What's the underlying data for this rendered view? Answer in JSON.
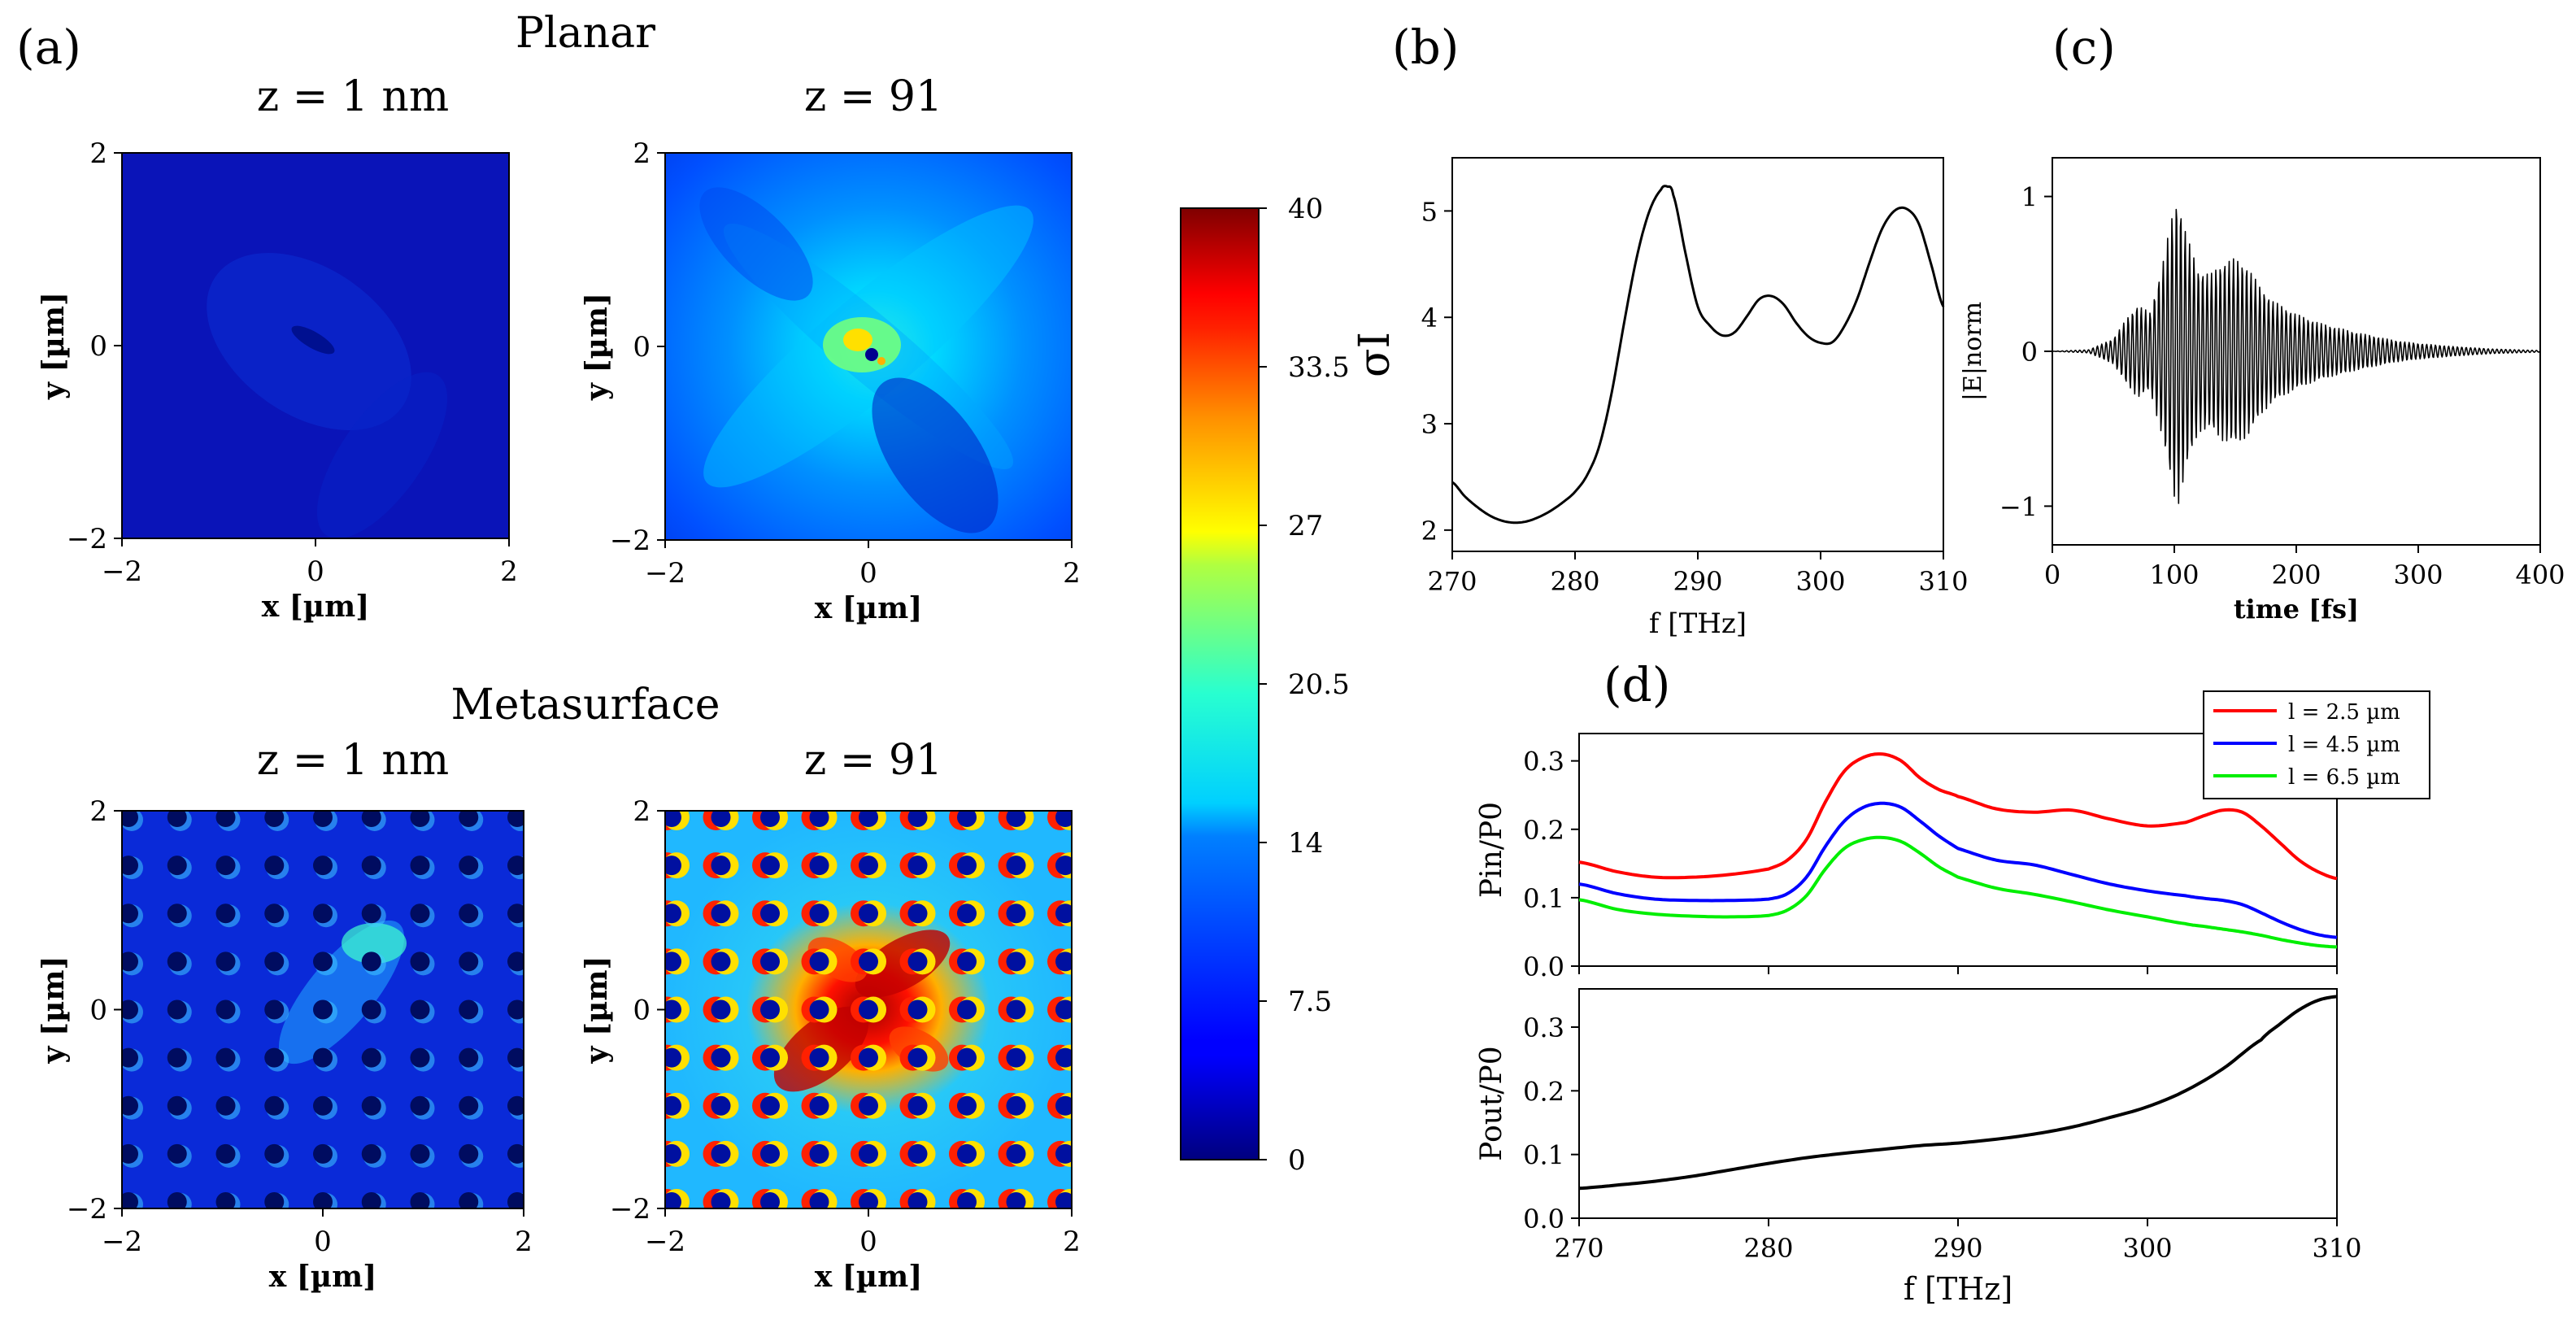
{
  "panels": {
    "a": {
      "label": "(a)",
      "planar_title": "Planar",
      "meta_title": "Metasurface",
      "maps": [
        {
          "title": "z = 1 nm",
          "kind": "planar_low"
        },
        {
          "title": "z = 91",
          "kind": "planar_high"
        },
        {
          "title": "z = 1 nm",
          "kind": "meta_low"
        },
        {
          "title": "z = 91",
          "kind": "meta_high"
        }
      ],
      "xlabel": "x [µm]",
      "ylabel": "y [µm]",
      "ticks": [
        "-2",
        "0",
        "2"
      ],
      "colorbar": {
        "min": 0,
        "max": 40,
        "tick_labels": [
          "40",
          "33.5",
          "27",
          "20.5",
          "14",
          "7.5",
          "0"
        ],
        "colormap": "jet"
      }
    },
    "b": {
      "label": "(b)"
    },
    "c": {
      "label": "(c)"
    },
    "d": {
      "label": "(d)"
    }
  },
  "chart_data": [
    {
      "id": "b",
      "type": "line",
      "xlabel": "f [THz]",
      "ylabel": "σI",
      "xlim": [
        270,
        310
      ],
      "ylim": [
        1.8,
        5.5
      ],
      "xticks": [
        270,
        280,
        290,
        300,
        310
      ],
      "yticks": [
        2,
        3,
        4,
        5
      ],
      "color": "#000000",
      "x": [
        270,
        271,
        272,
        273,
        274,
        275,
        276,
        277,
        278,
        279,
        280,
        281,
        282,
        283,
        284,
        285,
        286,
        287,
        287.5,
        288,
        289,
        290,
        291,
        292,
        293,
        294,
        295,
        296,
        297,
        298,
        299,
        300,
        301,
        302,
        303,
        304,
        305,
        306,
        307,
        308,
        309,
        310
      ],
      "y": [
        2.45,
        2.32,
        2.22,
        2.14,
        2.09,
        2.07,
        2.08,
        2.12,
        2.18,
        2.26,
        2.36,
        2.52,
        2.8,
        3.3,
        3.95,
        4.55,
        4.98,
        5.2,
        5.23,
        5.15,
        4.6,
        4.1,
        3.92,
        3.83,
        3.86,
        4.01,
        4.17,
        4.2,
        4.12,
        3.95,
        3.82,
        3.76,
        3.77,
        3.93,
        4.18,
        4.52,
        4.83,
        5.0,
        5.02,
        4.88,
        4.5,
        4.1
      ]
    },
    {
      "id": "c",
      "type": "line",
      "xlabel": "time [fs]",
      "ylabel": "|E|norm",
      "xlim": [
        0,
        400
      ],
      "ylim": [
        -1.25,
        1.25
      ],
      "xticks": [
        0,
        100,
        200,
        300,
        400
      ],
      "yticks": [
        -1,
        0,
        1
      ],
      "color": "#000000",
      "signal": "oscillatory pulse, dense carrier oscillation",
      "envelope_time_fs": [
        0,
        30,
        50,
        60,
        70,
        80,
        90,
        100,
        103,
        110,
        120,
        130,
        140,
        150,
        160,
        170,
        180,
        200,
        220,
        250,
        280,
        300,
        330,
        360,
        400
      ],
      "envelope_amplitude": [
        0,
        0.01,
        0.08,
        0.2,
        0.3,
        0.25,
        0.55,
        0.95,
        1.0,
        0.75,
        0.52,
        0.5,
        0.58,
        0.6,
        0.55,
        0.42,
        0.33,
        0.24,
        0.18,
        0.12,
        0.07,
        0.05,
        0.03,
        0.015,
        0.005
      ]
    },
    {
      "id": "d_top",
      "type": "line",
      "xlabel": "",
      "ylabel": "Pin/P0",
      "xlim": [
        270,
        310
      ],
      "ylim": [
        0,
        0.34
      ],
      "yticks": [
        0.0,
        0.1,
        0.2,
        0.3
      ],
      "legend_position": "top-right",
      "x": [
        270,
        272,
        274,
        276,
        278,
        280,
        281,
        282,
        283,
        284,
        285,
        286,
        287,
        288,
        289,
        290,
        292,
        294,
        296,
        298,
        300,
        302,
        303,
        304,
        305,
        306,
        307,
        308,
        309,
        310
      ],
      "series": [
        {
          "name": "l = 2.5 µm",
          "color": "#ff0000",
          "values": [
            0.152,
            0.138,
            0.13,
            0.13,
            0.134,
            0.142,
            0.155,
            0.185,
            0.24,
            0.285,
            0.305,
            0.31,
            0.3,
            0.275,
            0.258,
            0.248,
            0.23,
            0.225,
            0.228,
            0.215,
            0.205,
            0.21,
            0.22,
            0.228,
            0.225,
            0.205,
            0.18,
            0.155,
            0.138,
            0.128
          ]
        },
        {
          "name": "l = 4.5 µm",
          "color": "#0000ff",
          "values": [
            0.12,
            0.106,
            0.098,
            0.096,
            0.096,
            0.098,
            0.106,
            0.13,
            0.175,
            0.212,
            0.232,
            0.238,
            0.232,
            0.212,
            0.19,
            0.172,
            0.155,
            0.148,
            0.134,
            0.12,
            0.11,
            0.103,
            0.099,
            0.096,
            0.09,
            0.078,
            0.065,
            0.054,
            0.046,
            0.042
          ]
        },
        {
          "name": "l = 6.5 µm",
          "color": "#00ee00",
          "values": [
            0.097,
            0.083,
            0.076,
            0.073,
            0.072,
            0.074,
            0.082,
            0.103,
            0.142,
            0.172,
            0.185,
            0.188,
            0.182,
            0.165,
            0.145,
            0.13,
            0.114,
            0.105,
            0.094,
            0.082,
            0.072,
            0.062,
            0.058,
            0.054,
            0.05,
            0.045,
            0.039,
            0.034,
            0.03,
            0.028
          ]
        }
      ]
    },
    {
      "id": "d_bottom",
      "type": "line",
      "xlabel": "f [THz]",
      "ylabel": "Pout/P0",
      "xlim": [
        270,
        310
      ],
      "ylim": [
        0,
        0.36
      ],
      "xticks": [
        270,
        280,
        290,
        300,
        310
      ],
      "yticks": [
        0.0,
        0.1,
        0.2,
        0.3
      ],
      "x": [
        270,
        272,
        274,
        276,
        278,
        280,
        282,
        284,
        286,
        288,
        290,
        292,
        294,
        296,
        298,
        300,
        302,
        304,
        306,
        307,
        308,
        309,
        310
      ],
      "series": [
        {
          "name": "",
          "color": "#000000",
          "values": [
            0.047,
            0.052,
            0.058,
            0.066,
            0.076,
            0.086,
            0.095,
            0.102,
            0.108,
            0.114,
            0.118,
            0.124,
            0.132,
            0.143,
            0.158,
            0.175,
            0.2,
            0.235,
            0.28,
            0.305,
            0.327,
            0.342,
            0.348
          ]
        }
      ]
    }
  ]
}
